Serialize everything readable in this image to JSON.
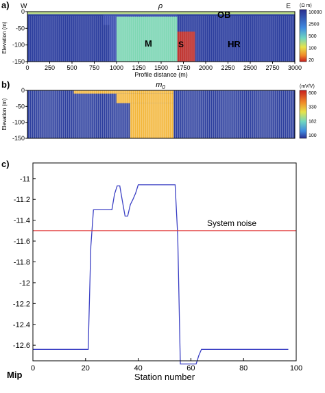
{
  "chart_data": [
    {
      "type": "heatmap",
      "panel_label": "a)",
      "title": "ρ",
      "left_label": "W",
      "right_label": "E",
      "xlabel": "Profile distance (m)",
      "ylabel": "Elevation (m)",
      "xlim": [
        0,
        3000
      ],
      "ylim": [
        -150,
        0
      ],
      "x_ticks": [
        "0",
        "250",
        "500",
        "750",
        "1000",
        "1250",
        "1500",
        "1750",
        "2000",
        "2250",
        "2500",
        "2750",
        "3000"
      ],
      "y_ticks": [
        "0",
        "-50",
        "-100",
        "-150"
      ],
      "colorbar": {
        "unit": "(Ω m)",
        "ticks": [
          "10000",
          "2500",
          "500",
          "100",
          "20"
        ]
      },
      "region_labels": [
        "OB",
        "M",
        "S",
        "HR"
      ],
      "regions": [
        {
          "name": "OB",
          "x": [
            0,
            3000
          ],
          "y": [
            -8,
            0
          ],
          "color": "#b8d88a"
        },
        {
          "name": "M",
          "x": [
            1000,
            1680
          ],
          "y": [
            -150,
            -15
          ],
          "color": "#7fd8b4"
        },
        {
          "name": "S",
          "x": [
            1680,
            1880
          ],
          "y": [
            -150,
            -60
          ],
          "color": "#c0302a"
        },
        {
          "name": "HR",
          "x": [
            0,
            3000
          ],
          "y": [
            -150,
            -8
          ],
          "color": "#2d3f9e"
        }
      ]
    },
    {
      "type": "heatmap",
      "panel_label": "b)",
      "title": "m0",
      "title_main": "m",
      "title_sub": "0",
      "ylabel": "Elevation (m)",
      "ylim": [
        -150,
        0
      ],
      "y_ticks": [
        "0",
        "-50",
        "-100",
        "-150"
      ],
      "colorbar": {
        "unit": "(mV/V)",
        "ticks": [
          "600",
          "330",
          "182",
          "100"
        ]
      },
      "chargeable_zone": [
        {
          "x": [
            520,
            1640
          ],
          "y": [
            -10,
            0
          ]
        },
        {
          "x": [
            1000,
            1640
          ],
          "y": [
            -40,
            -10
          ]
        },
        {
          "x": [
            1150,
            1640
          ],
          "y": [
            -150,
            -40
          ]
        }
      ],
      "colors": {
        "background": "#2d3f9e",
        "anomaly": "#f3b63a"
      }
    },
    {
      "type": "line",
      "panel_label": "c)",
      "xlabel": "Station number",
      "ylabel": "Mip",
      "xlim": [
        0,
        100
      ],
      "ylim": [
        -12.75,
        -10.85
      ],
      "x_ticks": [
        "0",
        "20",
        "40",
        "60",
        "80",
        "100"
      ],
      "y_ticks": [
        "-11",
        "-11.2",
        "-11.4",
        "-11.6",
        "-11.8",
        "-12",
        "-12.2",
        "-12.4",
        "-12.6"
      ],
      "annotation": "System noise",
      "noise_level": -11.5,
      "series": [
        {
          "color": "#3a3fc4",
          "x": [
            0,
            21,
            22,
            23,
            30,
            31,
            32,
            33,
            34,
            35,
            36,
            37,
            38,
            39,
            40,
            54,
            55,
            56,
            62,
            63,
            64,
            97
          ],
          "y": [
            -12.64,
            -12.64,
            -11.65,
            -11.3,
            -11.3,
            -11.15,
            -11.07,
            -11.07,
            -11.22,
            -11.36,
            -11.36,
            -11.25,
            -11.2,
            -11.14,
            -11.06,
            -11.06,
            -11.55,
            -12.78,
            -12.78,
            -12.7,
            -12.64,
            -12.64
          ]
        },
        {
          "color": "#e23a3a",
          "x": [
            0,
            100
          ],
          "y": [
            -11.5,
            -11.5
          ]
        }
      ]
    }
  ]
}
